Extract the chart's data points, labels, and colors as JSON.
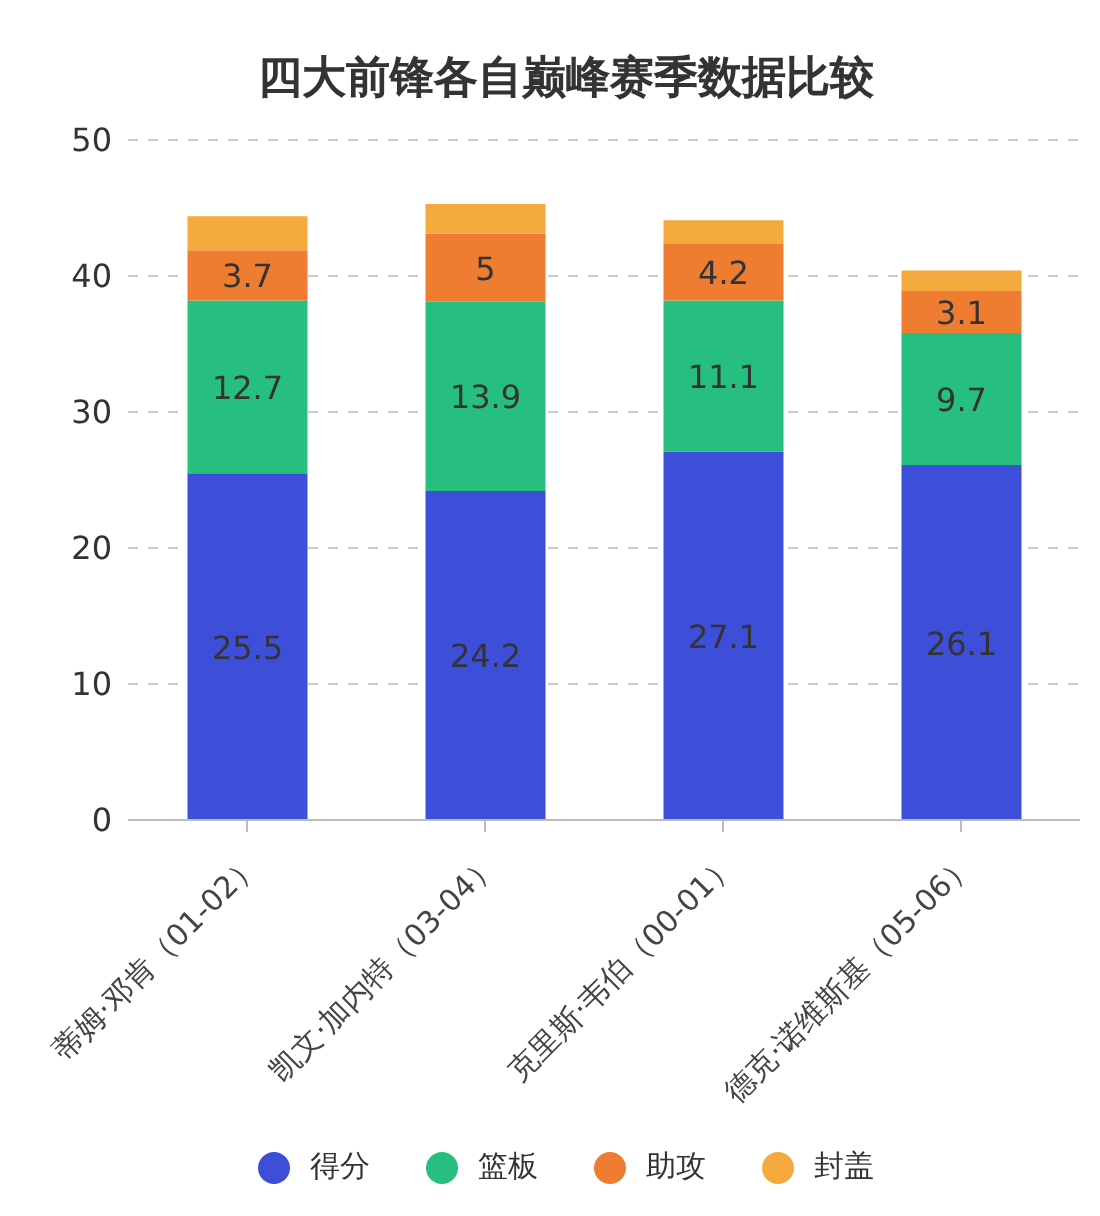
{
  "chart_data": {
    "type": "bar",
    "title": "四大前锋各自巅峰赛季数据比较",
    "stacked": true,
    "categories": [
      "蒂姆·邓肯（01-02）",
      "凯文·加内特（03-04）",
      "克里斯·韦伯（00-01）",
      "德克·诺维斯基（05-06）"
    ],
    "series": [
      {
        "name": "得分",
        "color": "#3d4fd8",
        "values": [
          25.5,
          24.2,
          27.1,
          26.1
        ],
        "value_labels": [
          "25.5",
          "24.2",
          "27.1",
          "26.1"
        ]
      },
      {
        "name": "篮板",
        "color": "#27bf7f",
        "values": [
          12.7,
          13.9,
          11.1,
          9.7
        ],
        "value_labels": [
          "12.7",
          "13.9",
          "11.1",
          "9.7"
        ]
      },
      {
        "name": "助攻",
        "color": "#ee7d31",
        "values": [
          3.7,
          5,
          4.2,
          3.1
        ],
        "value_labels": [
          "3.7",
          "5",
          "4.2",
          "3.1"
        ]
      },
      {
        "name": "封盖",
        "color": "#f4aa3c",
        "values": [
          2.5,
          2.2,
          1.7,
          1.5
        ]
      }
    ],
    "ylim": [
      0,
      50
    ],
    "yticks": [
      0,
      10,
      20,
      30,
      40,
      50
    ],
    "grid": "y",
    "legend": "bottom"
  }
}
